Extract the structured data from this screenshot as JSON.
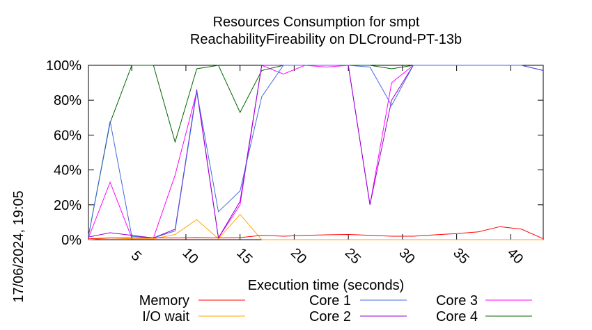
{
  "chart_data": {
    "type": "line",
    "title": "Resources Consumption for smpt",
    "subtitle": "ReachabilityFireability on DLCround-PT-13b",
    "xlabel": "Execution time (seconds)",
    "ylabel": "",
    "side_label": "17/06/2024, 19:05",
    "xlim": [
      1,
      43
    ],
    "ylim": [
      0,
      100
    ],
    "x_ticks": [
      5,
      10,
      15,
      20,
      25,
      30,
      35,
      40
    ],
    "y_ticks": [
      0,
      20,
      40,
      60,
      80,
      100
    ],
    "y_tick_labels": [
      "0%",
      "20%",
      "40%",
      "60%",
      "80%",
      "100%"
    ],
    "grid": false,
    "legend_placement": "bottom",
    "series": [
      {
        "name": "Memory",
        "color": "#ff0000",
        "x": [
          1,
          3,
          5,
          7,
          9,
          11,
          13,
          15,
          17,
          19,
          21,
          23,
          25,
          27,
          29,
          31,
          33,
          35,
          37,
          39,
          41,
          43
        ],
        "y": [
          0.5,
          1,
          1,
          1,
          1,
          1.2,
          1,
          1.2,
          2.5,
          2,
          2.5,
          2.8,
          3,
          2.5,
          2,
          2,
          2.8,
          3.5,
          4.5,
          7.5,
          6,
          0.5
        ]
      },
      {
        "name": "I/O wait",
        "color": "#ffa500",
        "x": [
          1,
          3,
          5,
          7,
          9,
          11,
          13,
          15,
          17,
          19,
          21,
          23,
          25,
          27,
          29,
          31,
          33,
          35,
          37,
          39,
          41,
          43
        ],
        "y": [
          0,
          1,
          0.5,
          0.5,
          3,
          11.5,
          0.5,
          14.5,
          0,
          0,
          0,
          0,
          0,
          0,
          0,
          0,
          0,
          0,
          0,
          0,
          0,
          0
        ]
      },
      {
        "name": "Core 1",
        "color": "#4169e1",
        "x": [
          1,
          3,
          5,
          7,
          9,
          11,
          13,
          15,
          17,
          19,
          21,
          23,
          25,
          27,
          29,
          31,
          33,
          35,
          37,
          39,
          41,
          43
        ],
        "y": [
          2,
          68,
          2,
          1,
          5,
          85,
          16,
          28,
          82,
          100,
          100,
          100,
          100,
          99,
          77,
          100,
          100,
          100,
          100,
          100,
          100,
          97
        ]
      },
      {
        "name": "Core 2",
        "color": "#9400d3",
        "x": [
          1,
          3,
          5,
          7,
          9,
          11,
          13,
          15,
          17,
          19,
          21,
          23,
          25,
          27,
          29,
          31,
          33,
          35,
          37,
          39,
          41,
          43
        ],
        "y": [
          1.5,
          4,
          2.5,
          1,
          6,
          86,
          1,
          22,
          100,
          100,
          100,
          100,
          100,
          20,
          80,
          100,
          100,
          100,
          100,
          100,
          100,
          97
        ]
      },
      {
        "name": "Core 3",
        "color": "#ff00ff",
        "x": [
          1,
          3,
          5,
          7,
          9,
          11,
          13,
          15,
          17,
          19,
          21,
          23,
          25,
          27,
          29,
          31,
          33,
          35,
          37,
          39,
          41,
          43
        ],
        "y": [
          1,
          33,
          1,
          1,
          37,
          85,
          1,
          20,
          100,
          95,
          100,
          99,
          100,
          20,
          90,
          100,
          100,
          100,
          100,
          100,
          100,
          97
        ]
      },
      {
        "name": "Core 4",
        "color": "#006400",
        "x": [
          1,
          3,
          5,
          7,
          9,
          11,
          13,
          15,
          17,
          19,
          21,
          23,
          25,
          27,
          29,
          31,
          33,
          35,
          37,
          39,
          41,
          43
        ],
        "y": [
          2,
          67,
          100,
          100,
          56,
          98,
          100,
          73,
          97,
          100,
          100,
          100,
          100,
          100,
          98,
          100,
          100,
          100,
          100,
          100,
          100,
          97
        ]
      }
    ]
  }
}
